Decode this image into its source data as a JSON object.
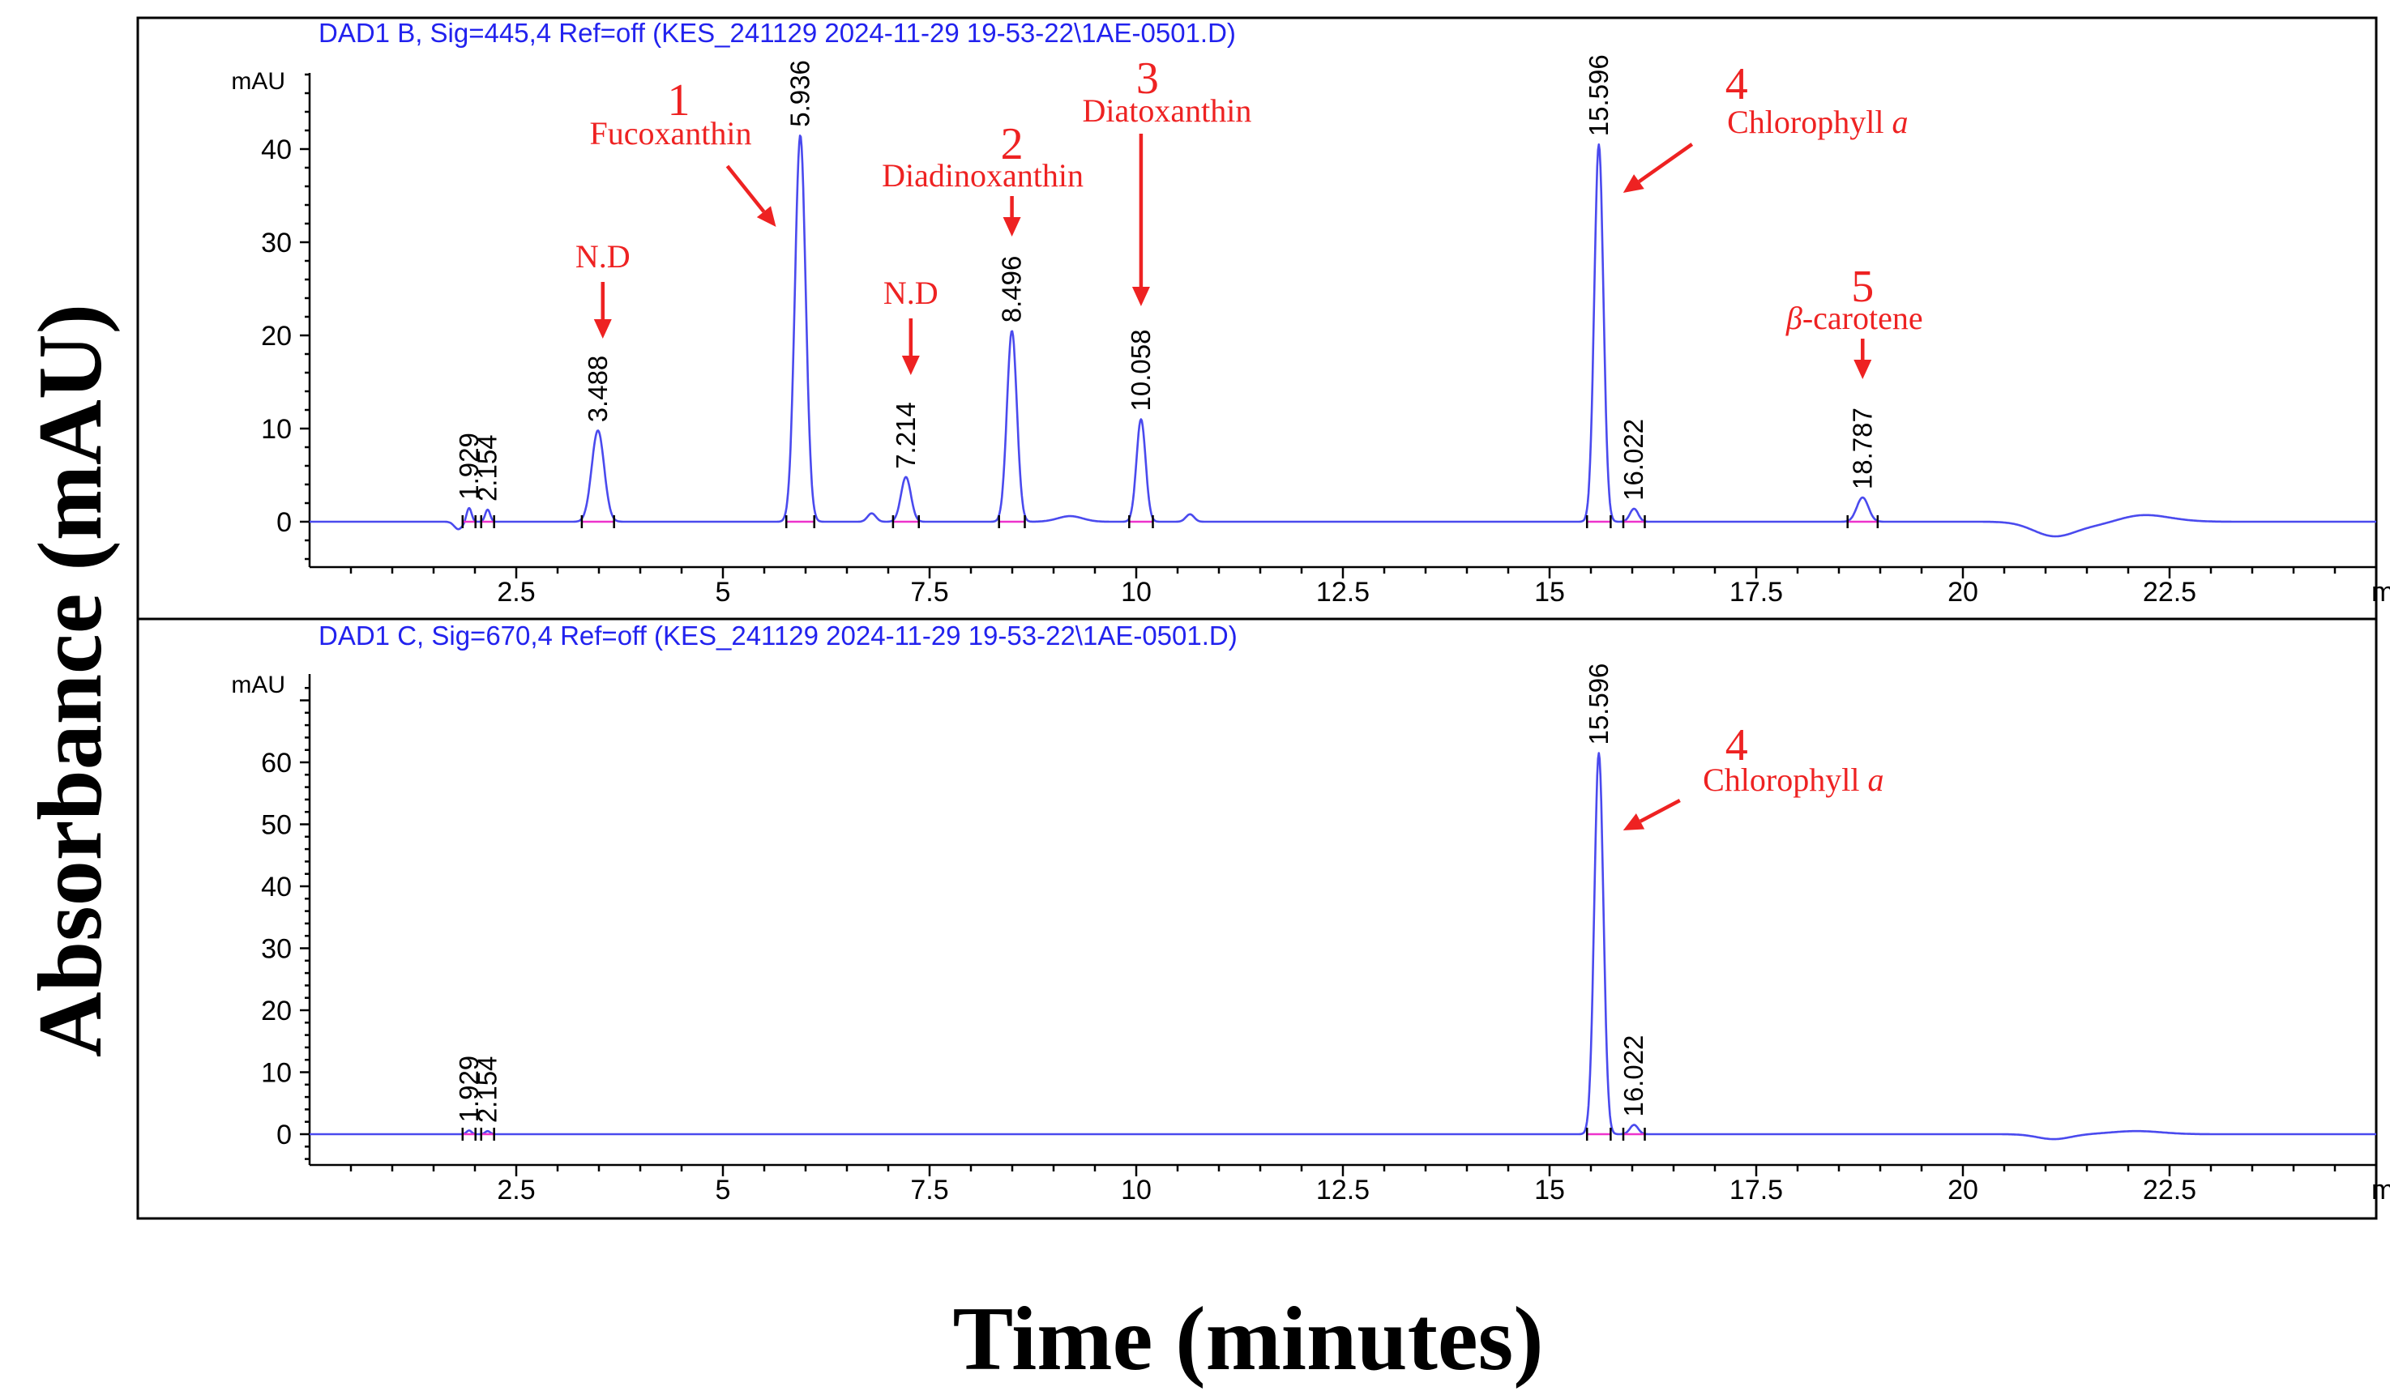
{
  "chart_data": {
    "type": "line",
    "xlabel": "Time (minutes)",
    "ylabel": "Absorbance (mAU)",
    "colors": {
      "trace": "#4a4aee",
      "trace_title": "#2222ee",
      "baseline_marker": "#ee33cc",
      "annotation": "#ee2222"
    },
    "panels": [
      {
        "title": "DAD1 B, Sig=445,4 Ref=off (KES_241129 2024-11-29 19-53-22\\1AE-0501.D)",
        "y_unit": "mAU",
        "x_unit": "min",
        "xlim": [
          0,
          25
        ],
        "ylim": [
          -4.5,
          48
        ],
        "xticks": [
          2.5,
          5,
          7.5,
          10,
          12.5,
          15,
          17.5,
          20,
          22.5
        ],
        "xtick_labels": [
          "2.5",
          "5",
          "7.5",
          "10",
          "12.5",
          "15",
          "17.5",
          "20",
          "22.5"
        ],
        "yticks": [
          0,
          10,
          20,
          30,
          40
        ],
        "ytick_labels": [
          "0",
          "10",
          "20",
          "30",
          "40"
        ],
        "peaks": [
          {
            "rt": 1.929,
            "height": 1.5,
            "width": 0.03,
            "label": "1.929"
          },
          {
            "rt": 2.154,
            "height": 1.3,
            "width": 0.03,
            "label": "2.154"
          },
          {
            "rt": 3.488,
            "height": 9.8,
            "width": 0.075,
            "label": "3.488"
          },
          {
            "rt": 5.936,
            "height": 41.5,
            "width": 0.065,
            "label": "5.936"
          },
          {
            "rt": 7.214,
            "height": 4.8,
            "width": 0.06,
            "label": "7.214"
          },
          {
            "rt": 8.496,
            "height": 20.5,
            "width": 0.06,
            "label": "8.496"
          },
          {
            "rt": 10.058,
            "height": 11.0,
            "width": 0.055,
            "label": "10.058"
          },
          {
            "rt": 15.596,
            "height": 40.5,
            "width": 0.055,
            "label": "15.596"
          },
          {
            "rt": 16.022,
            "height": 1.4,
            "width": 0.05,
            "label": "16.022"
          },
          {
            "rt": 18.787,
            "height": 2.6,
            "width": 0.07,
            "label": "18.787"
          }
        ],
        "minor_peaks": [
          {
            "rt": 1.8,
            "height": -0.8,
            "width": 0.05
          },
          {
            "rt": 6.8,
            "height": 0.9,
            "width": 0.05
          },
          {
            "rt": 9.2,
            "height": 0.6,
            "width": 0.15
          },
          {
            "rt": 10.65,
            "height": 0.8,
            "width": 0.05
          },
          {
            "rt": 21.1,
            "height": -1.5,
            "width": 0.25
          },
          {
            "rt": 22.1,
            "height": 0.9,
            "width": 0.35
          },
          {
            "rt": 21.7,
            "height": -0.6,
            "width": 0.3
          }
        ],
        "annotations": [
          {
            "number": "",
            "name": "N.D",
            "peak_rt": 3.488
          },
          {
            "number": "1",
            "name": "Fucoxanthin",
            "peak_rt": 5.936
          },
          {
            "number": "",
            "name": "N.D",
            "peak_rt": 7.214
          },
          {
            "number": "2",
            "name": "Diadinoxanthin",
            "peak_rt": 8.496
          },
          {
            "number": "3",
            "name": "Diatoxanthin",
            "peak_rt": 10.058
          },
          {
            "number": "4",
            "name": "Chlorophyll",
            "name_italic": "a",
            "peak_rt": 15.596
          },
          {
            "number": "5",
            "name": "-carotene",
            "name_prefix_italic": "β",
            "peak_rt": 18.787
          }
        ]
      },
      {
        "title": "DAD1 C, Sig=670,4 Ref=off (KES_241129 2024-11-29 19-53-22\\1AE-0501.D)",
        "y_unit": "mAU",
        "x_unit": "min",
        "xlim": [
          0,
          25
        ],
        "ylim": [
          -4.5,
          73
        ],
        "xticks": [
          2.5,
          5,
          7.5,
          10,
          12.5,
          15,
          17.5,
          20,
          22.5
        ],
        "xtick_labels": [
          "2.5",
          "5",
          "7.5",
          "10",
          "12.5",
          "15",
          "17.5",
          "20",
          "22.5"
        ],
        "yticks": [
          0,
          10,
          20,
          30,
          40,
          50,
          60
        ],
        "ytick_labels": [
          "0",
          "10",
          "20",
          "30",
          "40",
          "50",
          "60"
        ],
        "peaks": [
          {
            "rt": 1.929,
            "height": 0.6,
            "width": 0.03,
            "label": "1.929"
          },
          {
            "rt": 2.154,
            "height": 0.5,
            "width": 0.03,
            "label": "2.154"
          },
          {
            "rt": 15.596,
            "height": 61.5,
            "width": 0.055,
            "label": "15.596"
          },
          {
            "rt": 16.022,
            "height": 1.5,
            "width": 0.05,
            "label": "16.022"
          }
        ],
        "minor_peaks": [
          {
            "rt": 21.1,
            "height": -0.8,
            "width": 0.2
          },
          {
            "rt": 22.1,
            "height": 0.5,
            "width": 0.3
          }
        ],
        "annotations": [
          {
            "number": "4",
            "name": "Chlorophyll",
            "name_italic": "a",
            "peak_rt": 15.596
          }
        ]
      }
    ]
  }
}
